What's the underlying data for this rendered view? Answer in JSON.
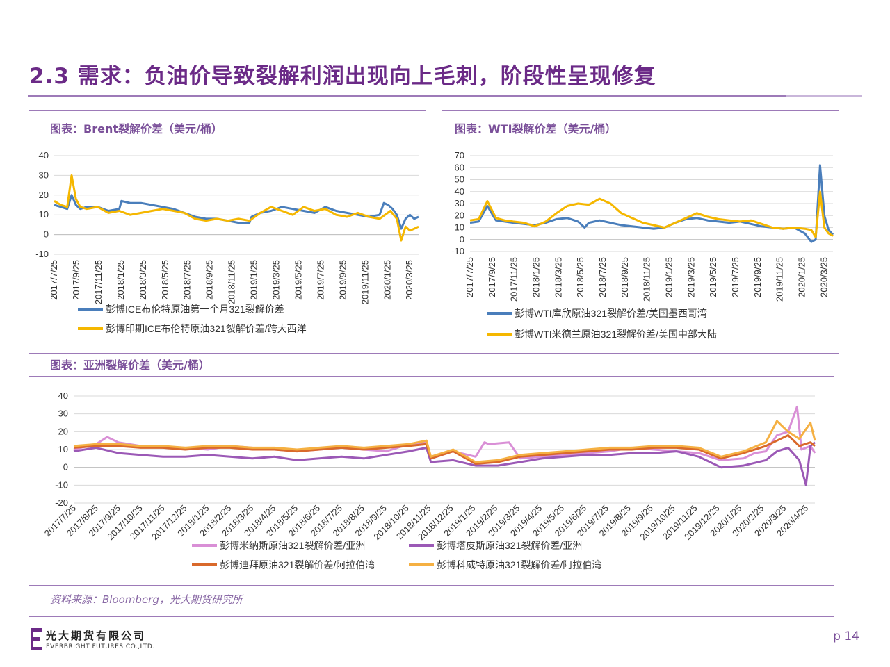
{
  "page": {
    "title": "2.3 需求：负油价导致裂解利润出现向上毛刺，阶段性呈现修复",
    "source_note": "资料来源：Bloomberg，光大期货研究所",
    "logo_cn": "光大期货有限公司",
    "logo_en": "EVERBRIGHT FUTURES CO.,LTD.",
    "page_number": "p 14"
  },
  "panels": {
    "brent": {
      "title": "图表：Brent裂解价差（美元/桶）"
    },
    "wti": {
      "title": "图表：WTI裂解价差（美元/桶）"
    },
    "asia": {
      "title": "图表：亚洲裂解价差（美元/桶）"
    }
  },
  "chart_data": [
    {
      "id": "brent",
      "type": "line",
      "title": "",
      "ylim": [
        -10,
        40
      ],
      "yticks": [
        "40",
        "30",
        "20",
        "10",
        "0",
        "-10"
      ],
      "x_tick_labels": [
        "2017/7/25",
        "2017/9/25",
        "2017/11/25",
        "2018/1/25",
        "2018/3/25",
        "2018/5/25",
        "2018/7/25",
        "2018/9/25",
        "2018/11/25",
        "2019/1/25",
        "2019/3/25",
        "2019/5/25",
        "2019/7/25",
        "2019/9/25",
        "2019/11/25",
        "2020/1/25",
        "2020/3/25"
      ],
      "x_range": [
        0,
        16.8
      ],
      "legend_placement": "bottom",
      "series": [
        {
          "name": "彭博ICE布伦特原油第一个月321裂解价差",
          "color": "#4a7ebb",
          "x": [
            0,
            0.3,
            0.6,
            0.8,
            1.0,
            1.2,
            1.5,
            2.0,
            2.5,
            3.0,
            3.1,
            3.5,
            4.0,
            4.5,
            5.0,
            5.5,
            6.0,
            6.5,
            7.0,
            7.5,
            8.0,
            8.5,
            9.0,
            9.1,
            9.5,
            10.0,
            10.5,
            11.0,
            11.5,
            12.0,
            12.5,
            13.0,
            13.5,
            14.0,
            14.5,
            15.0,
            15.2,
            15.4,
            15.6,
            15.8,
            16.0,
            16.2,
            16.4,
            16.6,
            16.8
          ],
          "y": [
            15,
            14,
            13,
            20,
            15,
            13,
            14,
            14,
            12,
            13,
            17,
            16,
            16,
            15,
            14,
            13,
            11,
            9,
            8,
            8,
            7,
            6,
            6,
            9,
            11,
            12,
            14,
            13,
            12,
            11,
            14,
            12,
            11,
            10,
            9,
            10,
            16,
            15,
            13,
            10,
            3,
            8,
            10,
            8,
            9
          ]
        },
        {
          "name": "彭博印期ICE布伦特原油321裂解价差/跨大西洋",
          "color": "#f5b700",
          "x": [
            0,
            0.3,
            0.6,
            0.8,
            1.0,
            1.2,
            1.5,
            2.0,
            2.5,
            3.0,
            3.5,
            4.0,
            4.5,
            5.0,
            5.5,
            6.0,
            6.5,
            7.0,
            7.5,
            8.0,
            8.5,
            9.0,
            9.5,
            10.0,
            10.5,
            11.0,
            11.5,
            12.0,
            12.5,
            13.0,
            13.5,
            14.0,
            14.5,
            15.0,
            15.5,
            15.8,
            16.0,
            16.2,
            16.4,
            16.6,
            16.8
          ],
          "y": [
            17,
            15,
            14,
            30,
            18,
            14,
            13,
            14,
            11,
            12,
            10,
            11,
            12,
            13,
            12,
            11,
            8,
            7,
            8,
            7,
            8,
            7,
            11,
            14,
            12,
            10,
            14,
            12,
            13,
            10,
            9,
            11,
            9,
            8,
            12,
            8,
            -3,
            4,
            2,
            3,
            4
          ]
        }
      ]
    },
    {
      "id": "wti",
      "type": "line",
      "title": "",
      "ylim": [
        -10,
        70
      ],
      "yticks": [
        "70",
        "60",
        "50",
        "40",
        "30",
        "20",
        "10",
        "0",
        "-10"
      ],
      "x_tick_labels": [
        "2017/7/25",
        "2017/9/25",
        "2017/11/25",
        "2018/1/25",
        "2018/3/25",
        "2018/5/25",
        "2018/7/25",
        "2018/9/25",
        "2018/11/25",
        "2019/1/25",
        "2019/3/25",
        "2019/5/25",
        "2019/7/25",
        "2019/9/25",
        "2019/11/25",
        "2020/1/25",
        "2020/3/25"
      ],
      "x_range": [
        0,
        16.8
      ],
      "legend_placement": "bottom",
      "series": [
        {
          "name": "彭博WTI库欣原油321裂解价差/美国墨西哥湾",
          "color": "#4a7ebb",
          "x": [
            0,
            0.4,
            0.8,
            1.2,
            1.6,
            2.0,
            2.5,
            3.0,
            3.5,
            4.0,
            4.5,
            5.0,
            5.3,
            5.5,
            6.0,
            6.5,
            7.0,
            7.5,
            8.0,
            8.5,
            9.0,
            9.5,
            10.0,
            10.5,
            11.0,
            11.5,
            12.0,
            12.5,
            13.0,
            13.5,
            14.0,
            14.5,
            15.0,
            15.5,
            15.8,
            16.0,
            16.2,
            16.4,
            16.6,
            16.8
          ],
          "y": [
            14,
            15,
            28,
            16,
            15,
            14,
            13,
            12,
            14,
            17,
            18,
            15,
            10,
            14,
            16,
            14,
            12,
            11,
            10,
            9,
            10,
            14,
            17,
            18,
            16,
            15,
            14,
            15,
            13,
            11,
            10,
            9,
            10,
            5,
            -2,
            0,
            62,
            20,
            8,
            4
          ]
        },
        {
          "name": "彭博WTI米德兰原油321裂解价差/美国中部大陆",
          "color": "#f5b700",
          "x": [
            0,
            0.4,
            0.8,
            1.2,
            1.6,
            2.0,
            2.5,
            3.0,
            3.5,
            4.0,
            4.5,
            5.0,
            5.5,
            6.0,
            6.5,
            7.0,
            7.5,
            8.0,
            8.5,
            9.0,
            9.5,
            10.0,
            10.5,
            11.0,
            11.5,
            12.0,
            12.5,
            13.0,
            13.5,
            14.0,
            14.5,
            15.0,
            15.5,
            15.8,
            16.0,
            16.2,
            16.4,
            16.6,
            16.8
          ],
          "y": [
            16,
            17,
            32,
            18,
            16,
            15,
            14,
            11,
            15,
            22,
            28,
            30,
            29,
            34,
            30,
            22,
            18,
            14,
            12,
            10,
            14,
            18,
            22,
            19,
            17,
            16,
            15,
            16,
            13,
            10,
            9,
            10,
            9,
            8,
            2,
            40,
            10,
            5,
            3
          ]
        }
      ]
    },
    {
      "id": "asia",
      "type": "line",
      "title": "",
      "ylim": [
        -20,
        40
      ],
      "yticks": [
        "40",
        "30",
        "20",
        "10",
        "0",
        "-10",
        "-20"
      ],
      "x_tick_labels": [
        "2017/7/25",
        "2017/8/25",
        "2017/9/25",
        "2017/10/25",
        "2017/11/25",
        "2017/12/25",
        "2018/1/25",
        "2018/2/25",
        "2018/3/25",
        "2018/4/25",
        "2018/5/25",
        "2018/6/25",
        "2018/7/25",
        "2018/8/25",
        "2018/9/25",
        "2018/10/25",
        "2018/11/25",
        "2018/12/25",
        "2019/1/25",
        "2019/2/25",
        "2019/3/25",
        "2019/4/25",
        "2019/5/25",
        "2019/6/25",
        "2019/7/25",
        "2019/8/25",
        "2019/9/25",
        "2019/10/25",
        "2019/11/25",
        "2019/12/25",
        "2020/1/25",
        "2020/2/25",
        "2020/3/25",
        "2020/4/25"
      ],
      "x_range": [
        0,
        33.2
      ],
      "legend_placement": "bottom",
      "series": [
        {
          "name": "彭博米纳斯原油321裂解价差/亚洲",
          "color": "#d98fd6",
          "x": [
            0,
            1,
            1.5,
            2,
            3,
            4,
            5,
            6,
            7,
            8,
            9,
            10,
            11,
            12,
            13,
            14,
            15,
            15.8,
            16,
            17,
            18,
            18.4,
            18.6,
            19.5,
            20,
            21,
            22,
            23,
            24,
            25,
            26,
            27,
            28,
            29,
            30,
            30.5,
            31,
            31.5,
            32,
            32.4,
            32.6,
            33,
            33.2
          ],
          "y": [
            10,
            13,
            17,
            14,
            12,
            11,
            11,
            10,
            12,
            11,
            10,
            9,
            10,
            11,
            10,
            9,
            13,
            14,
            5,
            9,
            6,
            14,
            13,
            14,
            5,
            6,
            7,
            8,
            9,
            11,
            10,
            9,
            8,
            4,
            5,
            8,
            9,
            18,
            20,
            34,
            10,
            12,
            8
          ]
        },
        {
          "name": "彭博塔皮斯原油321裂解价差/亚洲",
          "color": "#9b59b6",
          "x": [
            0,
            1,
            2,
            3,
            4,
            5,
            6,
            7,
            8,
            9,
            10,
            11,
            12,
            13,
            14,
            15,
            15.8,
            16,
            17,
            18,
            19,
            20,
            21,
            22,
            23,
            24,
            25,
            26,
            27,
            28,
            29,
            30,
            31,
            31.5,
            32,
            32.5,
            32.8,
            33,
            33.2
          ],
          "y": [
            9,
            11,
            8,
            7,
            6,
            6,
            7,
            6,
            5,
            6,
            4,
            5,
            6,
            5,
            7,
            9,
            11,
            3,
            4,
            1,
            1,
            3,
            5,
            6,
            7,
            7,
            8,
            8,
            9,
            6,
            0,
            1,
            4,
            9,
            11,
            4,
            -10,
            12,
            14
          ]
        },
        {
          "name": "彭博迪拜原油321裂解价差/阿拉伯湾",
          "color": "#d9692b",
          "x": [
            0,
            1,
            2,
            3,
            4,
            5,
            6,
            7,
            8,
            9,
            10,
            11,
            12,
            13,
            14,
            15,
            15.8,
            16,
            17,
            18,
            19,
            20,
            21,
            22,
            23,
            24,
            25,
            26,
            27,
            28,
            29,
            30,
            31,
            31.5,
            32,
            32.5,
            33,
            33.2
          ],
          "y": [
            11,
            12,
            12,
            11,
            11,
            10,
            11,
            11,
            10,
            10,
            9,
            10,
            11,
            10,
            11,
            12,
            13,
            5,
            9,
            2,
            3,
            6,
            7,
            8,
            9,
            10,
            10,
            11,
            11,
            10,
            5,
            8,
            12,
            15,
            18,
            12,
            14,
            12
          ]
        },
        {
          "name": "彭博科威特原油321裂解价差/阿拉伯湾",
          "color": "#f5b042",
          "x": [
            0,
            1,
            2,
            3,
            4,
            5,
            6,
            7,
            8,
            9,
            10,
            11,
            12,
            13,
            14,
            15,
            15.8,
            16,
            17,
            18,
            19,
            20,
            21,
            22,
            23,
            24,
            25,
            26,
            27,
            28,
            29,
            30,
            31,
            31.5,
            32,
            32.5,
            33,
            33.2
          ],
          "y": [
            12,
            13,
            13,
            12,
            12,
            11,
            12,
            12,
            11,
            11,
            10,
            11,
            12,
            11,
            12,
            13,
            15,
            6,
            10,
            3,
            4,
            7,
            8,
            9,
            10,
            11,
            11,
            12,
            12,
            11,
            6,
            9,
            14,
            26,
            20,
            16,
            25,
            15
          ]
        }
      ]
    }
  ]
}
